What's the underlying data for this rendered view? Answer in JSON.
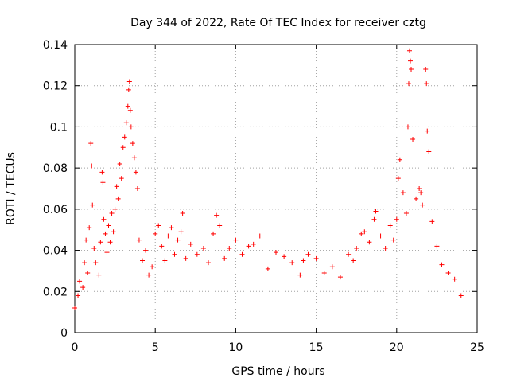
{
  "chart_data": {
    "type": "scatter",
    "title": "Day 344 of 2022, Rate Of TEC Index for receiver cztg",
    "xlabel": "GPS time / hours",
    "ylabel": "ROTI / TECUs",
    "xlim": [
      0,
      25
    ],
    "ylim": [
      0,
      0.14
    ],
    "x_ticks": [
      0,
      5,
      10,
      15,
      20,
      25
    ],
    "y_ticks": [
      0,
      0.02,
      0.04,
      0.06,
      0.08,
      0.1,
      0.12,
      0.14
    ],
    "x_tick_labels": [
      "0",
      "5",
      "10",
      "15",
      "20",
      "25"
    ],
    "y_tick_labels": [
      "0",
      "0.02",
      "0.04",
      "0.06",
      "0.08",
      "0.1",
      "0.12",
      "0.14"
    ],
    "grid": true,
    "marker": "+",
    "series": [
      {
        "name": "ROTI",
        "color": "#ff0000",
        "points": [
          [
            0.0,
            0.012
          ],
          [
            0.2,
            0.018
          ],
          [
            0.3,
            0.025
          ],
          [
            0.5,
            0.022
          ],
          [
            0.6,
            0.034
          ],
          [
            0.7,
            0.045
          ],
          [
            0.8,
            0.029
          ],
          [
            0.9,
            0.051
          ],
          [
            1.0,
            0.092
          ],
          [
            1.05,
            0.081
          ],
          [
            1.1,
            0.062
          ],
          [
            1.2,
            0.041
          ],
          [
            1.3,
            0.034
          ],
          [
            1.5,
            0.028
          ],
          [
            1.6,
            0.044
          ],
          [
            1.7,
            0.078
          ],
          [
            1.75,
            0.073
          ],
          [
            1.8,
            0.055
          ],
          [
            1.9,
            0.048
          ],
          [
            2.0,
            0.039
          ],
          [
            2.1,
            0.052
          ],
          [
            2.2,
            0.044
          ],
          [
            2.3,
            0.058
          ],
          [
            2.4,
            0.049
          ],
          [
            2.5,
            0.06
          ],
          [
            2.6,
            0.071
          ],
          [
            2.7,
            0.065
          ],
          [
            2.8,
            0.082
          ],
          [
            2.9,
            0.075
          ],
          [
            3.0,
            0.09
          ],
          [
            3.1,
            0.095
          ],
          [
            3.2,
            0.102
          ],
          [
            3.3,
            0.11
          ],
          [
            3.35,
            0.118
          ],
          [
            3.4,
            0.122
          ],
          [
            3.45,
            0.108
          ],
          [
            3.5,
            0.1
          ],
          [
            3.6,
            0.092
          ],
          [
            3.7,
            0.085
          ],
          [
            3.8,
            0.078
          ],
          [
            3.9,
            0.07
          ],
          [
            4.0,
            0.045
          ],
          [
            4.2,
            0.035
          ],
          [
            4.4,
            0.04
          ],
          [
            4.6,
            0.028
          ],
          [
            4.8,
            0.032
          ],
          [
            5.0,
            0.048
          ],
          [
            5.2,
            0.052
          ],
          [
            5.4,
            0.042
          ],
          [
            5.6,
            0.035
          ],
          [
            5.8,
            0.047
          ],
          [
            6.0,
            0.051
          ],
          [
            6.2,
            0.038
          ],
          [
            6.4,
            0.045
          ],
          [
            6.6,
            0.049
          ],
          [
            6.7,
            0.058
          ],
          [
            6.9,
            0.036
          ],
          [
            7.2,
            0.043
          ],
          [
            7.6,
            0.038
          ],
          [
            8.0,
            0.041
          ],
          [
            8.3,
            0.034
          ],
          [
            8.6,
            0.048
          ],
          [
            8.8,
            0.057
          ],
          [
            9.0,
            0.052
          ],
          [
            9.3,
            0.036
          ],
          [
            9.6,
            0.041
          ],
          [
            10.0,
            0.045
          ],
          [
            10.4,
            0.038
          ],
          [
            10.8,
            0.042
          ],
          [
            11.1,
            0.043
          ],
          [
            11.5,
            0.047
          ],
          [
            12.0,
            0.031
          ],
          [
            12.5,
            0.039
          ],
          [
            13.0,
            0.037
          ],
          [
            13.5,
            0.034
          ],
          [
            14.0,
            0.028
          ],
          [
            14.2,
            0.035
          ],
          [
            14.5,
            0.038
          ],
          [
            15.0,
            0.036
          ],
          [
            15.5,
            0.029
          ],
          [
            16.0,
            0.032
          ],
          [
            16.5,
            0.027
          ],
          [
            17.0,
            0.038
          ],
          [
            17.3,
            0.035
          ],
          [
            17.5,
            0.041
          ],
          [
            17.8,
            0.048
          ],
          [
            18.0,
            0.049
          ],
          [
            18.3,
            0.044
          ],
          [
            18.6,
            0.055
          ],
          [
            18.7,
            0.059
          ],
          [
            19.0,
            0.047
          ],
          [
            19.3,
            0.041
          ],
          [
            19.6,
            0.052
          ],
          [
            19.8,
            0.045
          ],
          [
            20.0,
            0.055
          ],
          [
            20.1,
            0.075
          ],
          [
            20.2,
            0.084
          ],
          [
            20.4,
            0.068
          ],
          [
            20.6,
            0.058
          ],
          [
            20.7,
            0.1
          ],
          [
            20.75,
            0.121
          ],
          [
            20.8,
            0.137
          ],
          [
            20.85,
            0.132
          ],
          [
            20.9,
            0.128
          ],
          [
            21.0,
            0.094
          ],
          [
            21.2,
            0.065
          ],
          [
            21.4,
            0.07
          ],
          [
            21.5,
            0.068
          ],
          [
            21.6,
            0.062
          ],
          [
            21.8,
            0.128
          ],
          [
            21.85,
            0.121
          ],
          [
            21.9,
            0.098
          ],
          [
            22.0,
            0.088
          ],
          [
            22.2,
            0.054
          ],
          [
            22.5,
            0.042
          ],
          [
            22.8,
            0.033
          ],
          [
            23.2,
            0.029
          ],
          [
            23.6,
            0.026
          ],
          [
            24.0,
            0.018
          ]
        ]
      }
    ]
  }
}
